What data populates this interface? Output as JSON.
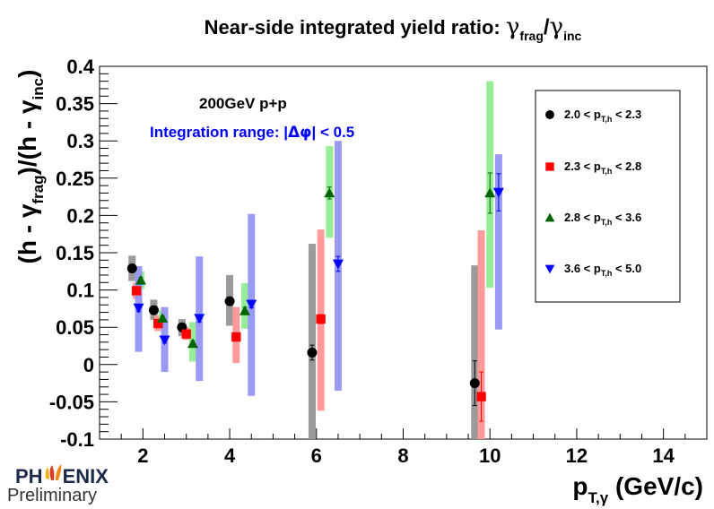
{
  "chart_data": {
    "type": "scatter",
    "title": {
      "main": "Near-side integrated yield ratio: ",
      "g1": "γ",
      "s1": "frag",
      "slash": "/",
      "g2": "γ",
      "s2": "inc"
    },
    "xlabel": {
      "main": "p",
      "sub": "T,γ",
      "rest": " (GeV/c)"
    },
    "ylabel": {
      "part1": "(h - γ",
      "sub1": "frag",
      "part2": ")/(h - γ",
      "sub2": "inc",
      "part3": ")"
    },
    "xlim": [
      1,
      15
    ],
    "ylim": [
      -0.1,
      0.4
    ],
    "x_ticks": [
      2,
      4,
      6,
      8,
      10,
      12,
      14
    ],
    "y_ticks": [
      -0.1,
      -0.05,
      0,
      0.05,
      0.1,
      0.15,
      0.2,
      0.25,
      0.3,
      0.35,
      0.4
    ],
    "y_tick_labels": [
      "-0.1",
      "-0.05",
      "0",
      "0.05",
      "0.1",
      "0.15",
      "0.2",
      "0.25",
      "0.3",
      "0.35",
      "0.4"
    ],
    "annotations": {
      "system": "200GeV p+p",
      "range_prefix": "Integration range: |",
      "range_symbol": "Δφ",
      "range_suffix": "| < 0.5"
    },
    "series": [
      {
        "name": "2.0 < pT,h < 2.3",
        "legend": {
          "pre": "2.0 < p",
          "sub": "T,h",
          "post": " < 2.3"
        },
        "marker": "circle",
        "color": "#000000",
        "band_color": "#9a9a9a",
        "points": [
          {
            "x": 1.75,
            "y": 0.129,
            "err": 0.003,
            "sys_lo": 0.112,
            "sys_hi": 0.146
          },
          {
            "x": 2.25,
            "y": 0.073,
            "err": 0.003,
            "sys_lo": 0.06,
            "sys_hi": 0.087
          },
          {
            "x": 2.9,
            "y": 0.05,
            "err": 0.003,
            "sys_lo": 0.038,
            "sys_hi": 0.061
          },
          {
            "x": 4.0,
            "y": 0.085,
            "err": 0.002,
            "sys_lo": 0.052,
            "sys_hi": 0.12
          },
          {
            "x": 5.9,
            "y": 0.016,
            "err": 0.01,
            "sys_lo": -0.1,
            "sys_hi": 0.162
          },
          {
            "x": 9.65,
            "y": -0.025,
            "err": 0.03,
            "sys_lo": -0.1,
            "sys_hi": 0.133
          }
        ]
      },
      {
        "name": "2.3 < pT,h < 2.8",
        "legend": {
          "pre": "2.3 < p",
          "sub": "T,h",
          "post": " < 2.8"
        },
        "marker": "square",
        "color": "#ff0000",
        "band_color": "#ff9a9a",
        "points": [
          {
            "x": 1.85,
            "y": 0.099,
            "err": 0.003,
            "sys_lo": 0.088,
            "sys_hi": 0.11
          },
          {
            "x": 2.35,
            "y": 0.055,
            "err": 0.003,
            "sys_lo": 0.045,
            "sys_hi": 0.066
          },
          {
            "x": 3.0,
            "y": 0.041,
            "err": 0.003,
            "sys_lo": 0.033,
            "sys_hi": 0.05
          },
          {
            "x": 4.15,
            "y": 0.037,
            "err": 0.004,
            "sys_lo": 0.002,
            "sys_hi": 0.077
          },
          {
            "x": 6.1,
            "y": 0.061,
            "err": 0.006,
            "sys_lo": -0.062,
            "sys_hi": 0.181
          },
          {
            "x": 9.8,
            "y": -0.043,
            "err": 0.033,
            "sys_lo": -0.1,
            "sys_hi": 0.18
          }
        ]
      },
      {
        "name": "2.8 < pT,h < 3.6",
        "legend": {
          "pre": "2.8 < p",
          "sub": "T,h",
          "post": " < 3.6"
        },
        "marker": "triangle-up",
        "color": "#006400",
        "band_color": "#98ee98",
        "points": [
          {
            "x": 1.95,
            "y": 0.113,
            "err": 0.004,
            "sys_lo": 0.101,
            "sys_hi": 0.125
          },
          {
            "x": 2.45,
            "y": 0.062,
            "err": 0.003,
            "sys_lo": 0.05,
            "sys_hi": 0.073
          },
          {
            "x": 3.15,
            "y": 0.028,
            "err": 0.004,
            "sys_lo": 0.004,
            "sys_hi": 0.057
          },
          {
            "x": 4.35,
            "y": 0.072,
            "err": 0.005,
            "sys_lo": 0.048,
            "sys_hi": 0.109
          },
          {
            "x": 6.3,
            "y": 0.23,
            "err": 0.008,
            "sys_lo": 0.17,
            "sys_hi": 0.293
          },
          {
            "x": 10.0,
            "y": 0.23,
            "err": 0.027,
            "sys_lo": 0.103,
            "sys_hi": 0.38
          }
        ]
      },
      {
        "name": "3.6 < pT,h < 5.0",
        "legend": {
          "pre": "3.6 < p",
          "sub": "T,h",
          "post": " < 5.0"
        },
        "marker": "triangle-down",
        "color": "#0000ff",
        "band_color": "#9a9af5",
        "points": [
          {
            "x": 1.9,
            "y": 0.076,
            "err": 0.005,
            "sys_lo": 0.017,
            "sys_hi": 0.132
          },
          {
            "x": 2.5,
            "y": 0.033,
            "err": 0.004,
            "sys_lo": -0.01,
            "sys_hi": 0.077
          },
          {
            "x": 3.3,
            "y": 0.062,
            "err": 0.005,
            "sys_lo": -0.022,
            "sys_hi": 0.145
          },
          {
            "x": 4.5,
            "y": 0.081,
            "err": 0.005,
            "sys_lo": -0.042,
            "sys_hi": 0.202
          },
          {
            "x": 6.5,
            "y": 0.135,
            "err": 0.01,
            "sys_lo": -0.035,
            "sys_hi": 0.3
          },
          {
            "x": 10.2,
            "y": 0.231,
            "err": 0.025,
            "sys_lo": 0.047,
            "sys_hi": 0.282
          }
        ]
      }
    ]
  },
  "logo": {
    "brand_pre": "PH",
    "brand_post": "ENIX",
    "status": "Preliminary"
  }
}
